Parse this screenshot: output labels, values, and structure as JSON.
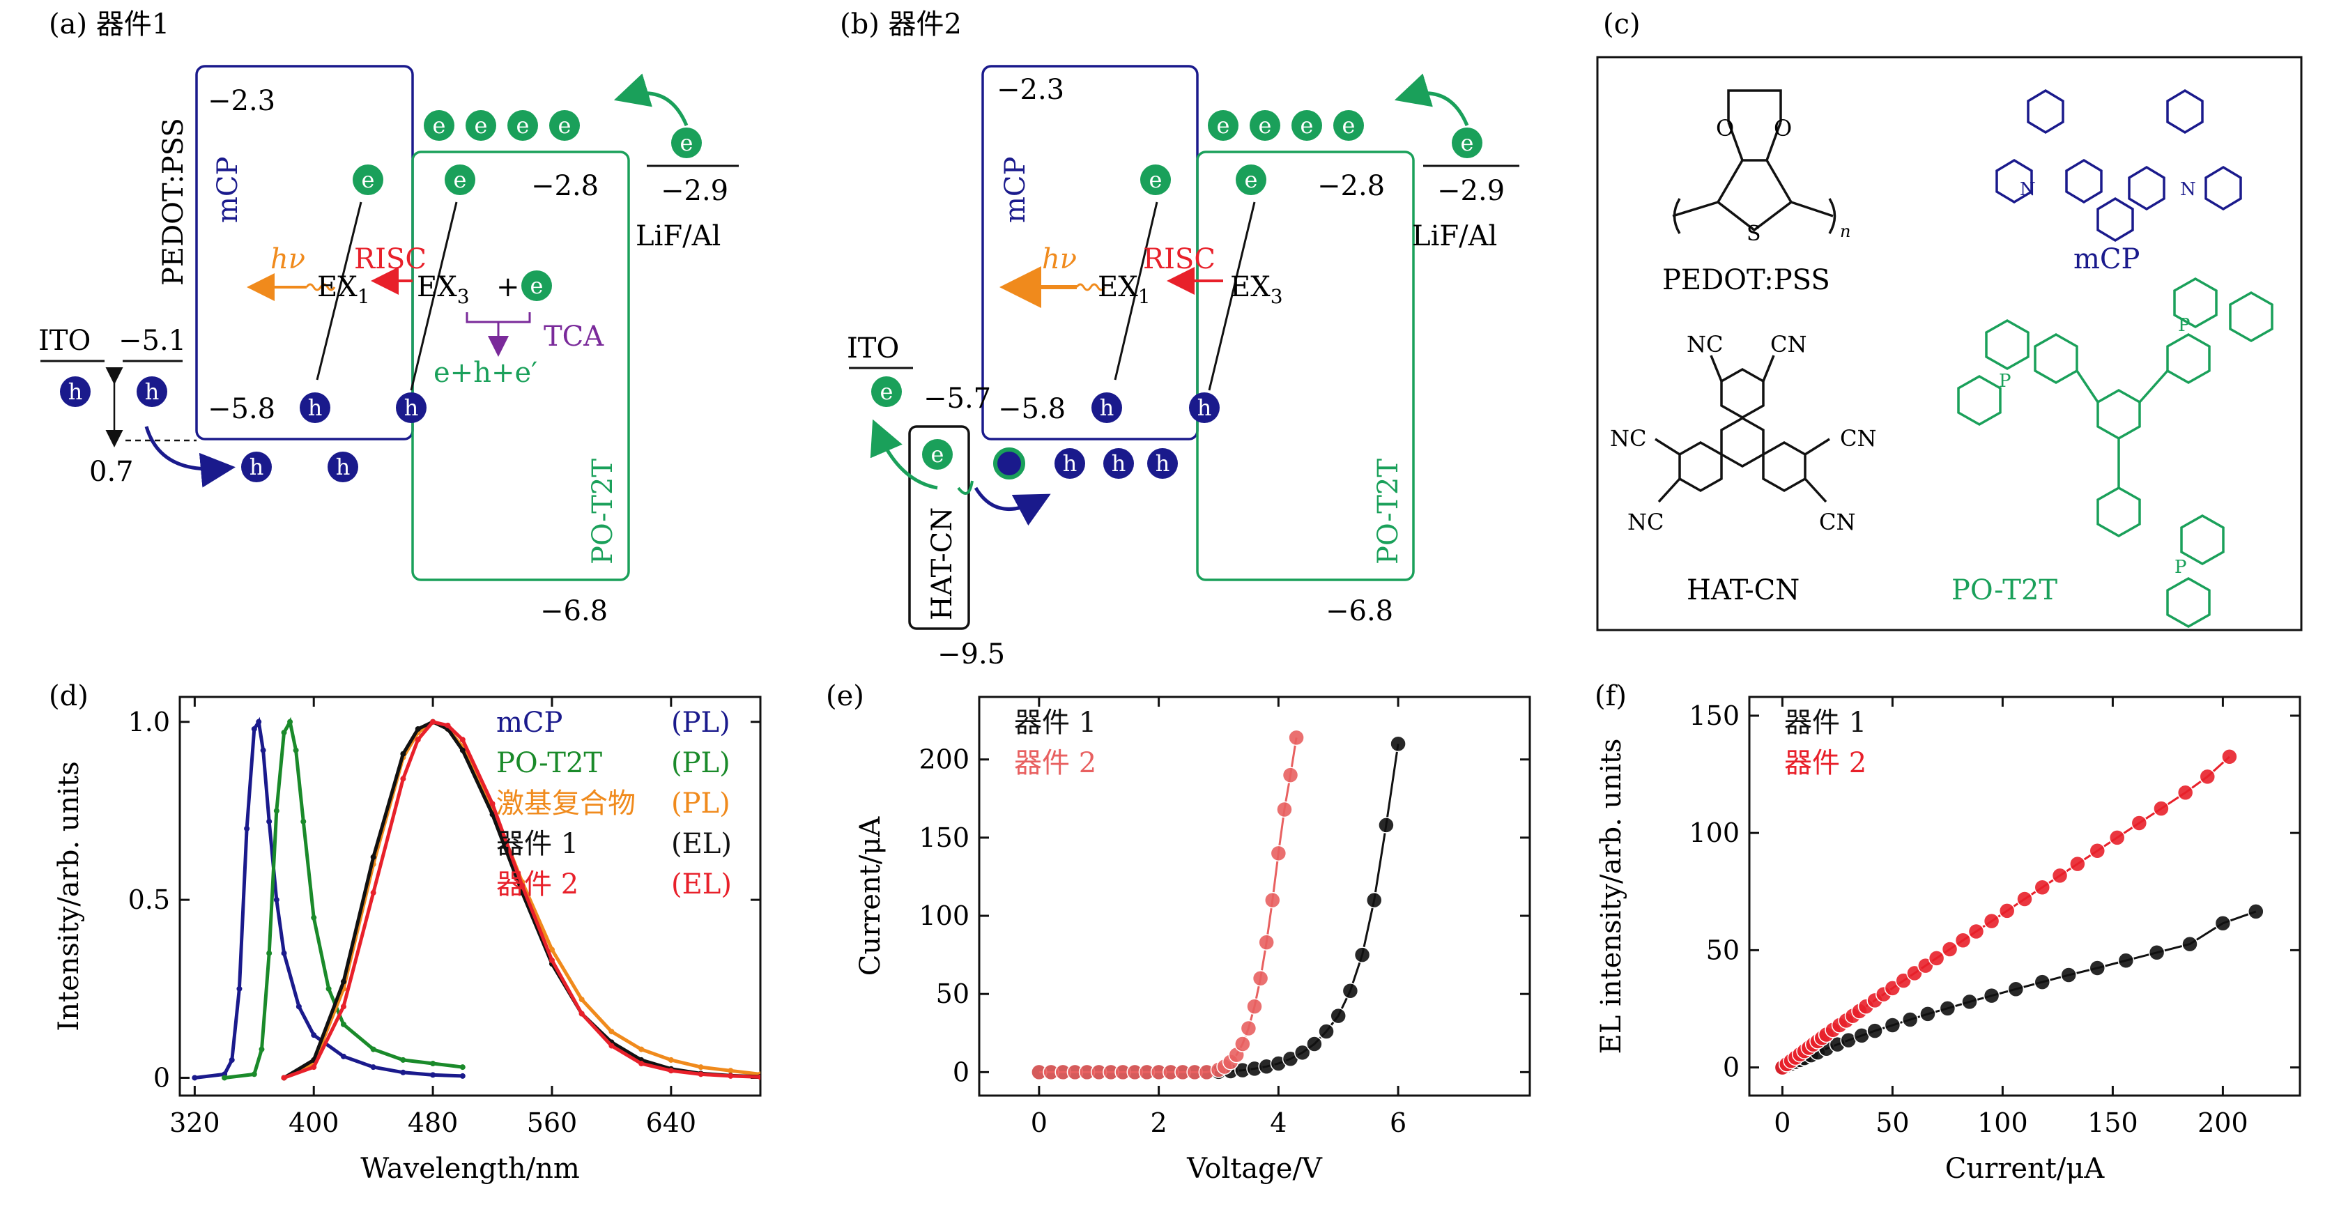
{
  "panel_labels": {
    "a": "(a)",
    "b": "(b)",
    "c": "(c)",
    "d": "(d)",
    "e": "(e)",
    "f": "(f)"
  },
  "panel_a": {
    "title": "器件1",
    "pedot": "PEDOT:PSS",
    "mcp": "mCP",
    "pot2t": "PO-T2T",
    "ito": "ITO",
    "lif": "LiF/Al",
    "levels": {
      "ito": "−5.1",
      "mcp_lumo": "−2.3",
      "mcp_homo": "−5.8",
      "pot_lumo": "−2.8",
      "pot_homo": "−6.8",
      "lif": "−2.9"
    },
    "gap": "0.7",
    "hv": "hν",
    "risc": "RISC",
    "ex1": "EX",
    "ex1_sub": "1",
    "ex3": "EX",
    "ex3_sub": "3",
    "plus": "+",
    "tca": "TCA",
    "products": "e+h+e′",
    "e": "e",
    "h": "h"
  },
  "panel_b": {
    "title": "器件2",
    "mcp": "mCP",
    "pot2t": "PO-T2T",
    "ito": "ITO",
    "lif": "LiF/Al",
    "hatcn": "HAT-CN",
    "levels": {
      "ito": "−5.7",
      "mcp_lumo": "−2.3",
      "mcp_homo": "−5.8",
      "pot_lumo": "−2.8",
      "pot_homo": "−6.8",
      "lif": "−2.9",
      "hat": "−9.5"
    },
    "hv": "hν",
    "risc": "RISC",
    "ex1": "EX",
    "ex1_sub": "1",
    "ex3": "EX",
    "ex3_sub": "3"
  },
  "panel_c": {
    "pedot": "PEDOT:PSS",
    "mcp": "mCP",
    "hatcn": "HAT-CN",
    "pot2t": "PO-T2T",
    "atoms": {
      "o": "O",
      "s": "S",
      "n": "N",
      "nc": "NC",
      "cn": "CN",
      "p": "P",
      "n_sub": "n"
    }
  },
  "colors": {
    "blue": "#1a1a8c",
    "green": "#1aa05a",
    "orange": "#f08a1c",
    "red": "#e8202a",
    "purple": "#7a2a9a",
    "black": "#111111",
    "pink": "#e86060"
  },
  "chart_data": [
    {
      "panel": "d",
      "type": "line",
      "xlabel": "Wavelength/nm",
      "ylabel": "Intensity/arb. units",
      "xlim": [
        310,
        700
      ],
      "ylim": [
        -0.05,
        1.07
      ],
      "xticks": [
        320,
        400,
        480,
        560,
        640
      ],
      "yticks": [
        0,
        0.5,
        1.0
      ],
      "ytick_labels": [
        "0",
        "0.5",
        "1.0"
      ],
      "legend_placement": "top-right",
      "series": [
        {
          "name": "mCP",
          "tag": "(PL)",
          "color": "#1a1a8c",
          "x": [
            320,
            340,
            345,
            350,
            355,
            360,
            363,
            366,
            370,
            375,
            380,
            390,
            400,
            420,
            440,
            460,
            480,
            500
          ],
          "y": [
            0,
            0.01,
            0.05,
            0.25,
            0.7,
            0.98,
            1.0,
            0.92,
            0.72,
            0.5,
            0.35,
            0.2,
            0.12,
            0.06,
            0.03,
            0.015,
            0.008,
            0.005
          ]
        },
        {
          "name": "PO-T2T",
          "tag": "(PL)",
          "color": "#1a8a2a",
          "x": [
            340,
            360,
            365,
            370,
            375,
            380,
            384,
            388,
            393,
            400,
            410,
            420,
            440,
            460,
            480,
            500
          ],
          "y": [
            0,
            0.01,
            0.08,
            0.35,
            0.75,
            0.97,
            1.0,
            0.92,
            0.72,
            0.45,
            0.25,
            0.15,
            0.08,
            0.05,
            0.04,
            0.03
          ]
        },
        {
          "name": "激基复合物",
          "tag": "(PL)",
          "color": "#f08a1c",
          "x": [
            380,
            400,
            420,
            440,
            460,
            470,
            480,
            490,
            500,
            520,
            540,
            560,
            580,
            600,
            620,
            640,
            660,
            680,
            700
          ],
          "y": [
            0,
            0.04,
            0.25,
            0.6,
            0.9,
            0.97,
            1.0,
            0.98,
            0.93,
            0.76,
            0.55,
            0.36,
            0.22,
            0.13,
            0.08,
            0.05,
            0.03,
            0.02,
            0.01
          ]
        },
        {
          "name": "器件 1",
          "tag": "(EL)",
          "color": "#111111",
          "x": [
            380,
            400,
            420,
            440,
            460,
            470,
            480,
            490,
            500,
            520,
            540,
            560,
            580,
            600,
            620,
            640,
            660,
            680,
            700
          ],
          "y": [
            0,
            0.05,
            0.27,
            0.62,
            0.91,
            0.98,
            1.0,
            0.98,
            0.92,
            0.74,
            0.52,
            0.32,
            0.18,
            0.1,
            0.05,
            0.025,
            0.012,
            0.006,
            0.003
          ]
        },
        {
          "name": "器件 2",
          "tag": "(EL)",
          "color": "#e8202a",
          "x": [
            380,
            400,
            420,
            440,
            460,
            470,
            480,
            490,
            500,
            520,
            540,
            560,
            580,
            600,
            620,
            640,
            660,
            680,
            700
          ],
          "y": [
            0,
            0.03,
            0.2,
            0.52,
            0.84,
            0.95,
            1.0,
            0.99,
            0.95,
            0.77,
            0.54,
            0.33,
            0.18,
            0.09,
            0.04,
            0.02,
            0.01,
            0.005,
            0.002
          ]
        }
      ]
    },
    {
      "panel": "e",
      "type": "scatter",
      "xlabel": "Voltage/V",
      "ylabel": "Current/μA",
      "xlim": [
        -1,
        8.2
      ],
      "ylim": [
        -15,
        240
      ],
      "xticks": [
        0,
        2,
        4,
        6
      ],
      "yticks": [
        0,
        50,
        100,
        150,
        200
      ],
      "legend_placement": "top-left",
      "series": [
        {
          "name": "器件 1",
          "color": "#111111",
          "x": [
            0,
            0.2,
            0.4,
            0.6,
            0.8,
            1.0,
            1.2,
            1.4,
            1.6,
            1.8,
            2.0,
            2.2,
            2.4,
            2.6,
            2.8,
            3.0,
            3.2,
            3.4,
            3.6,
            3.8,
            4.0,
            4.2,
            4.4,
            4.6,
            4.8,
            5.0,
            5.2,
            5.4,
            5.6,
            5.8,
            6.0
          ],
          "y": [
            0,
            0,
            0,
            0,
            0,
            0,
            0,
            0,
            0,
            0,
            0,
            0,
            0,
            0,
            0,
            0.2,
            0.6,
            1.2,
            2.2,
            3.6,
            5.5,
            8.5,
            12.5,
            18,
            26,
            36,
            52,
            75,
            110,
            158,
            210
          ]
        },
        {
          "name": "器件 2",
          "color": "#e86060",
          "x": [
            0,
            0.2,
            0.4,
            0.6,
            0.8,
            1.0,
            1.2,
            1.4,
            1.6,
            1.8,
            2.0,
            2.2,
            2.4,
            2.6,
            2.8,
            3.0,
            3.1,
            3.2,
            3.3,
            3.4,
            3.5,
            3.6,
            3.7,
            3.8,
            3.9,
            4.0,
            4.1,
            4.2,
            4.3
          ],
          "y": [
            0,
            0,
            0,
            0,
            0,
            0,
            0,
            0,
            0,
            0,
            0,
            0,
            0,
            0,
            0,
            1.5,
            3.5,
            6.5,
            11,
            18,
            28,
            42,
            60,
            83,
            110,
            140,
            168,
            190,
            214
          ]
        }
      ]
    },
    {
      "panel": "f",
      "type": "scatter",
      "xlabel": "Current/μA",
      "ylabel": "EL intensity/arb. units",
      "xlim": [
        -15,
        235
      ],
      "ylim": [
        -12,
        158
      ],
      "xticks": [
        0,
        50,
        100,
        150,
        200
      ],
      "yticks": [
        0,
        50,
        100,
        150
      ],
      "legend_placement": "top-left",
      "series": [
        {
          "name": "器件 1",
          "color": "#111111",
          "x": [
            0,
            2,
            4,
            6,
            8,
            10,
            13,
            16,
            20,
            25,
            30,
            36,
            42,
            50,
            58,
            66,
            75,
            85,
            95,
            106,
            118,
            130,
            143,
            156,
            170,
            185,
            200,
            215
          ],
          "y": [
            0,
            0.8,
            1.6,
            2.4,
            3.2,
            4.0,
            5.2,
            6.4,
            8.0,
            9.8,
            11.6,
            13.6,
            15.6,
            18.0,
            20.4,
            22.8,
            25.2,
            28.0,
            30.6,
            33.4,
            36.4,
            39.4,
            42.4,
            45.6,
            49.0,
            52.6,
            61.5,
            66.5
          ]
        },
        {
          "name": "器件 2",
          "color": "#e8202a",
          "x": [
            0,
            2,
            4,
            6,
            8,
            10,
            12,
            14,
            16,
            18,
            20,
            23,
            26,
            29,
            32,
            35,
            38,
            42,
            46,
            50,
            55,
            60,
            65,
            70,
            76,
            82,
            88,
            95,
            102,
            110,
            118,
            126,
            134,
            143,
            152,
            162,
            172,
            183,
            193,
            203
          ],
          "y": [
            0,
            1.4,
            2.8,
            4.2,
            5.6,
            7.0,
            8.4,
            9.8,
            11.2,
            12.6,
            14.0,
            16.0,
            18.0,
            20.0,
            22.0,
            24.0,
            26.0,
            28.6,
            31.2,
            33.8,
            37.0,
            40.2,
            43.4,
            46.6,
            50.4,
            54.2,
            58.0,
            62.4,
            66.8,
            71.8,
            76.8,
            81.8,
            86.8,
            92.4,
            98.0,
            104.2,
            110.4,
            117.2,
            124.0,
            132.5
          ]
        }
      ]
    }
  ]
}
